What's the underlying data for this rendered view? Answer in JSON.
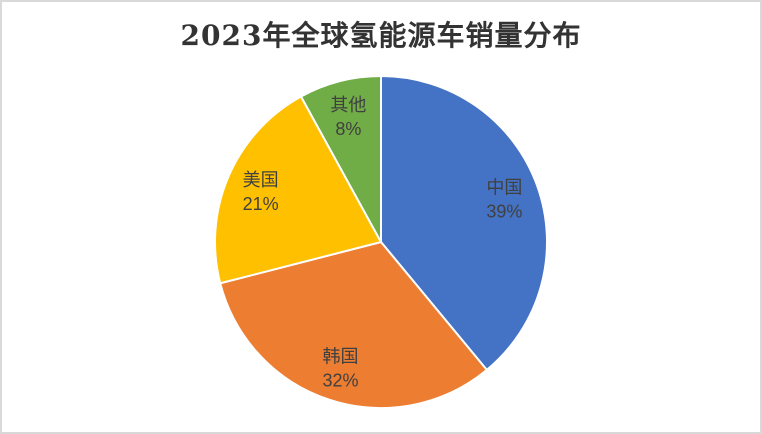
{
  "chart_data": {
    "type": "pie",
    "title": "2023年全球氢能源车销量分布",
    "categories": [
      "中国",
      "韩国",
      "美国",
      "其他"
    ],
    "values": [
      39,
      32,
      21,
      8
    ],
    "unit": "%",
    "colors": [
      "#4472C4",
      "#ED7D31",
      "#FFC000",
      "#70AD47"
    ],
    "start_angle_deg": 0,
    "direction": "clockwise",
    "labels_position": "inside",
    "legend_position": "none",
    "label_color": "#404040",
    "background_color": "#ffffff",
    "border_color": "#d9d9d9"
  }
}
